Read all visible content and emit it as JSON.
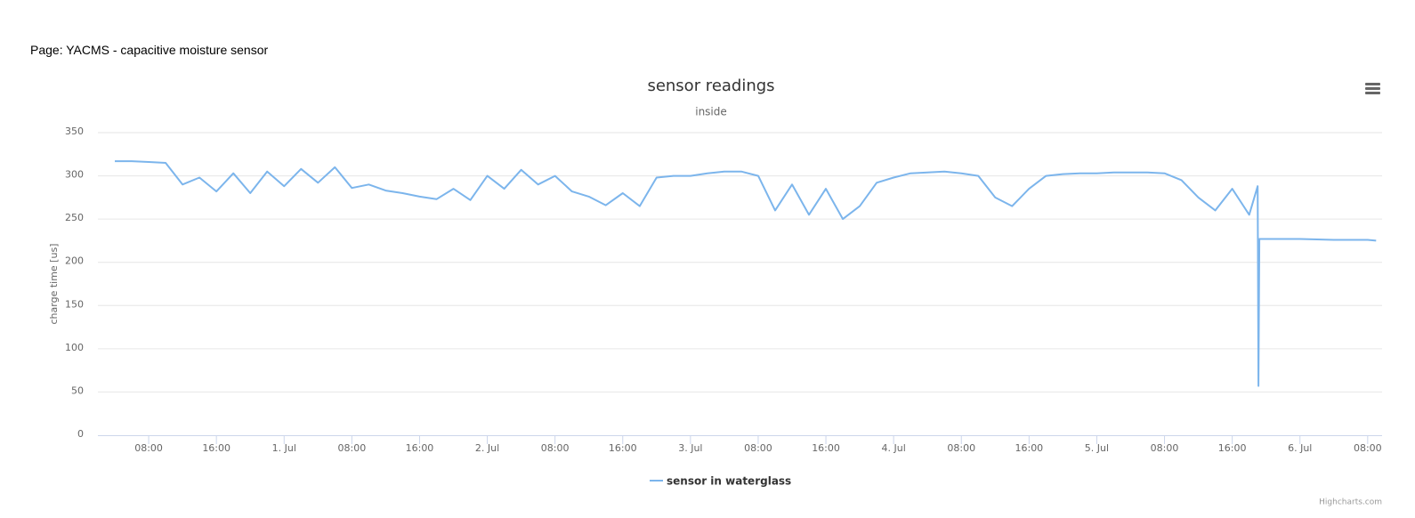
{
  "page": {
    "heading": "Page: YACMS - capacitive moisture sensor"
  },
  "chart_data": {
    "type": "line",
    "title": "sensor readings",
    "subtitle": "inside",
    "y_label": "charge time [us]",
    "credits": "Highcharts.com",
    "grid": true,
    "legend": "bottom",
    "x": [
      -20,
      -18,
      -16,
      -14,
      -12,
      -10,
      -8,
      -6,
      -4,
      -2,
      0,
      2,
      4,
      6,
      8,
      10,
      12,
      14,
      16,
      18,
      20,
      22,
      24,
      26,
      28,
      30,
      32,
      34,
      36,
      38,
      40,
      42,
      44,
      46,
      48,
      50,
      52,
      54,
      56,
      58,
      60,
      62,
      64,
      66,
      68,
      70,
      72,
      74,
      76,
      78,
      80,
      82,
      84,
      86,
      88,
      90,
      92,
      94,
      96,
      98,
      100,
      102,
      104,
      106,
      108,
      110,
      112,
      114,
      115,
      115.1,
      115.2,
      118,
      120,
      124,
      128,
      129
    ],
    "series": [
      {
        "name": "sensor in waterglass",
        "color": "#7cb5ec",
        "values": [
          317,
          317,
          316,
          315,
          290,
          298,
          282,
          303,
          280,
          305,
          288,
          308,
          292,
          310,
          286,
          290,
          283,
          280,
          276,
          273,
          285,
          272,
          300,
          285,
          307,
          290,
          300,
          282,
          276,
          266,
          280,
          265,
          298,
          300,
          300,
          303,
          305,
          305,
          300,
          260,
          290,
          255,
          285,
          250,
          265,
          292,
          298,
          303,
          304,
          305,
          303,
          300,
          275,
          265,
          285,
          300,
          302,
          303,
          303,
          304,
          304,
          304,
          303,
          295,
          275,
          260,
          285,
          255,
          288,
          57,
          227,
          227,
          227,
          226,
          226,
          225
        ]
      }
    ],
    "xlim": [
      -22,
      129.7
    ],
    "xticks": [
      {
        "value": -16,
        "label": "08:00"
      },
      {
        "value": -8,
        "label": "16:00"
      },
      {
        "value": 0,
        "label": "1. Jul"
      },
      {
        "value": 8,
        "label": "08:00"
      },
      {
        "value": 16,
        "label": "16:00"
      },
      {
        "value": 24,
        "label": "2. Jul"
      },
      {
        "value": 32,
        "label": "08:00"
      },
      {
        "value": 40,
        "label": "16:00"
      },
      {
        "value": 48,
        "label": "3. Jul"
      },
      {
        "value": 56,
        "label": "08:00"
      },
      {
        "value": 64,
        "label": "16:00"
      },
      {
        "value": 72,
        "label": "4. Jul"
      },
      {
        "value": 80,
        "label": "08:00"
      },
      {
        "value": 88,
        "label": "16:00"
      },
      {
        "value": 96,
        "label": "5. Jul"
      },
      {
        "value": 104,
        "label": "08:00"
      },
      {
        "value": 112,
        "label": "16:00"
      },
      {
        "value": 120,
        "label": "6. Jul"
      },
      {
        "value": 128,
        "label": "08:00"
      }
    ],
    "ylim": [
      0,
      350
    ],
    "yticks": [
      0,
      50,
      100,
      150,
      200,
      250,
      300,
      350
    ]
  }
}
